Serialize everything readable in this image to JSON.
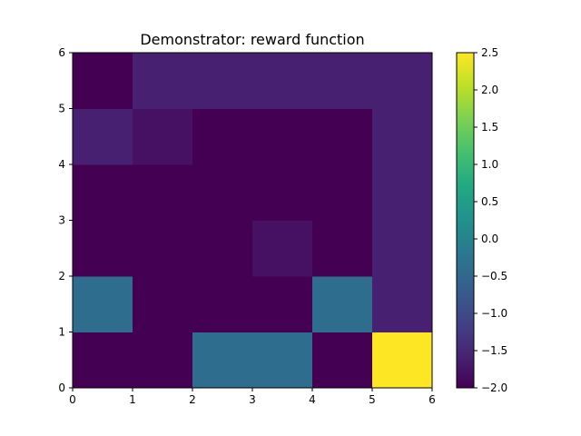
{
  "chart_data": {
    "type": "heatmap",
    "title": "Demonstrator: reward function",
    "xlabel": "",
    "ylabel": "",
    "xlim": [
      0,
      6
    ],
    "ylim": [
      0,
      6
    ],
    "x_ticks": [
      "0",
      "1",
      "2",
      "3",
      "4",
      "5",
      "6"
    ],
    "y_ticks": [
      "0",
      "1",
      "2",
      "3",
      "4",
      "5",
      "6"
    ],
    "grid": false,
    "colormap": "viridis",
    "colorbar": {
      "vmin": -2.0,
      "vmax": 2.5,
      "ticks": [
        "−2.0",
        "−1.5",
        "−1.0",
        "−0.5",
        "0.0",
        "0.5",
        "1.0",
        "1.5",
        "2.0",
        "2.5"
      ],
      "tick_values": [
        -2.0,
        -1.5,
        -1.0,
        -0.5,
        0.0,
        0.5,
        1.0,
        1.5,
        2.0,
        2.5
      ]
    },
    "rows_from_bottom": [
      [
        -2.0,
        -2.0,
        -0.4,
        -0.4,
        -2.0,
        2.5
      ],
      [
        -0.4,
        -2.0,
        -2.0,
        -2.0,
        -0.4,
        -1.6
      ],
      [
        -2.0,
        -2.0,
        -2.0,
        -1.8,
        -2.0,
        -1.6
      ],
      [
        -2.0,
        -2.0,
        -2.0,
        -2.0,
        -2.0,
        -1.6
      ],
      [
        -1.6,
        -1.8,
        -2.0,
        -2.0,
        -2.0,
        -1.6
      ],
      [
        -2.0,
        -1.6,
        -1.6,
        -1.6,
        -1.6,
        -1.6
      ]
    ]
  }
}
